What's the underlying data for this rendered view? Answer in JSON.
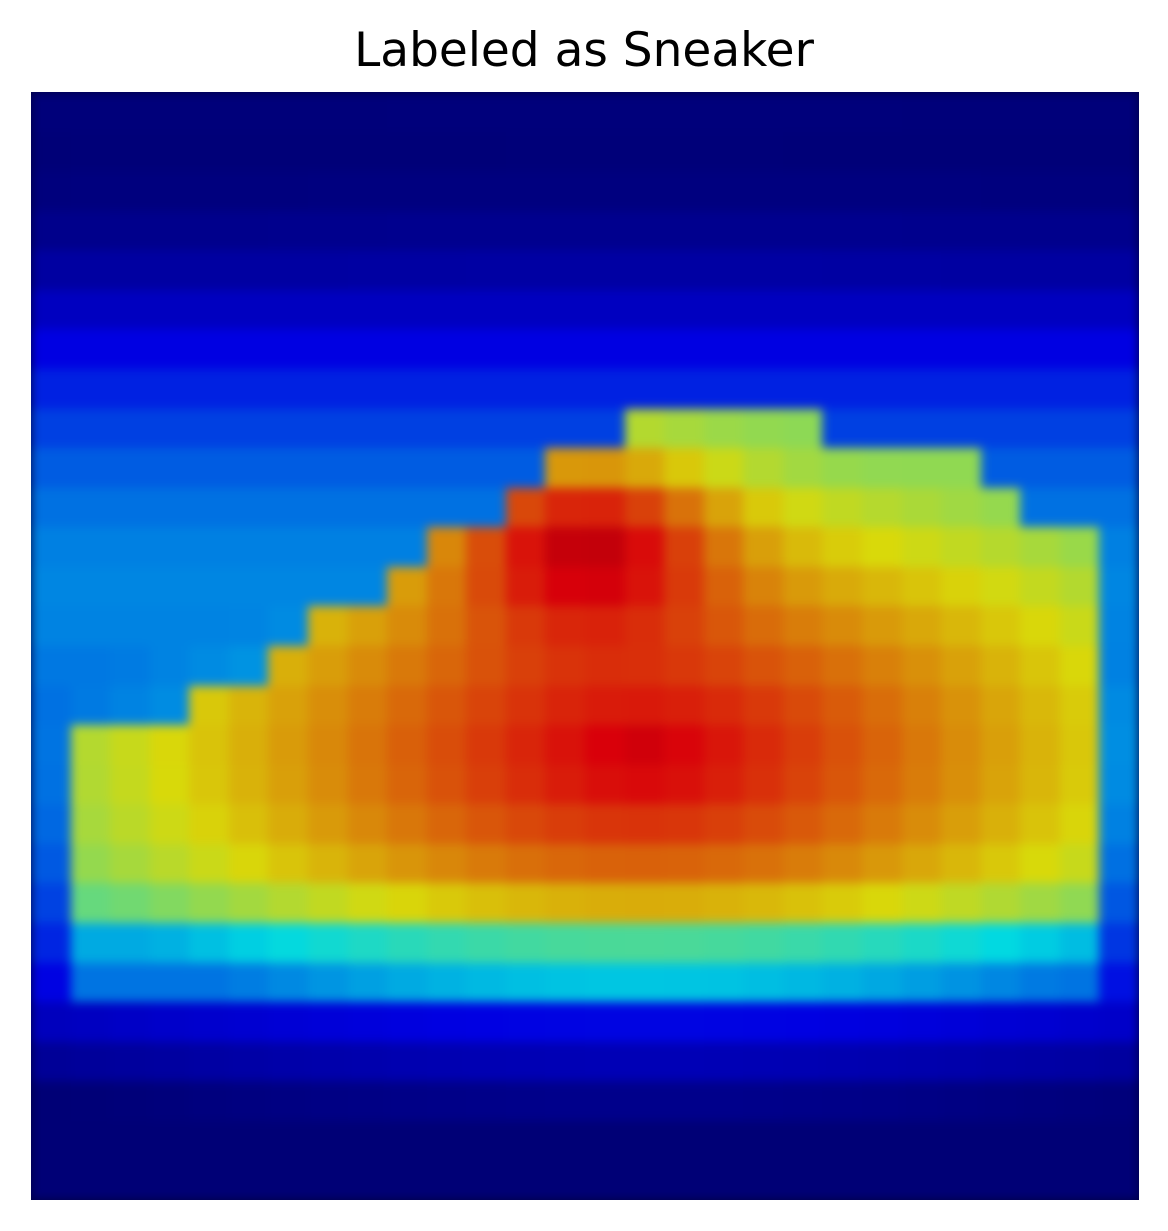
{
  "title": "Labeled as Sneaker",
  "image": {
    "subject": "sneaker",
    "colormap": "jet-like heatmap overlay",
    "grid_size": 28
  }
}
